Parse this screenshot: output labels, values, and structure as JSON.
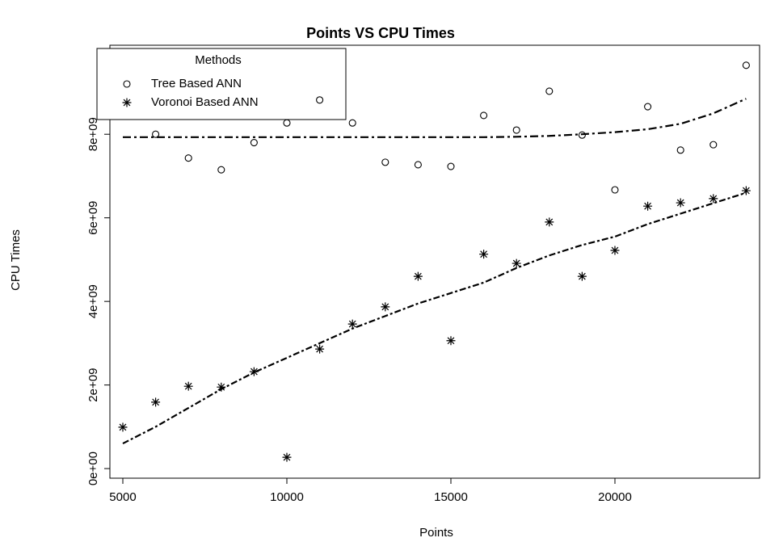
{
  "chart_data": {
    "type": "scatter",
    "title": "Points VS CPU Times",
    "x_label": "Points",
    "y_label": "CPU Times",
    "legend_title": "Methods",
    "legend": "top-left",
    "x": [
      5000,
      6000,
      7000,
      8000,
      9000,
      10000,
      11000,
      12000,
      13000,
      14000,
      15000,
      16000,
      17000,
      18000,
      19000,
      20000,
      21000,
      22000,
      23000,
      24000
    ],
    "series": [
      {
        "name": "Tree Based ANN",
        "marker": "circle",
        "color": "#000000",
        "values": [
          null,
          8000000000.0,
          7430000000.0,
          7150000000.0,
          7800000000.0,
          8270000000.0,
          8820000000.0,
          8270000000.0,
          7330000000.0,
          7270000000.0,
          7230000000.0,
          8450000000.0,
          8100000000.0,
          9030000000.0,
          7980000000.0,
          6670000000.0,
          8660000000.0,
          7620000000.0,
          7750000000.0,
          9650000000.0
        ],
        "fit": [
          7930000000.0,
          7930000000.0,
          7930000000.0,
          7930000000.0,
          7930000000.0,
          7930000000.0,
          7930000000.0,
          7930000000.0,
          7930000000.0,
          7930000000.0,
          7930000000.0,
          7930000000.0,
          7940000000.0,
          7960000000.0,
          8000000000.0,
          8050000000.0,
          8120000000.0,
          8250000000.0,
          8500000000.0,
          8850000000.0
        ]
      },
      {
        "name": "Voronoi Based ANN",
        "marker": "asterisk",
        "color": "#000000",
        "values": [
          990000000.0,
          1590000000.0,
          1970000000.0,
          1950000000.0,
          2320000000.0,
          270000000.0,
          2860000000.0,
          3460000000.0,
          3870000000.0,
          4600000000.0,
          3060000000.0,
          5130000000.0,
          4910000000.0,
          5900000000.0,
          4600000000.0,
          5220000000.0,
          6280000000.0,
          6360000000.0,
          6460000000.0,
          6650000000.0
        ],
        "fit": [
          600000000.0,
          1000000000.0,
          1450000000.0,
          1900000000.0,
          2300000000.0,
          2650000000.0,
          3000000000.0,
          3350000000.0,
          3650000000.0,
          3950000000.0,
          4200000000.0,
          4450000000.0,
          4800000000.0,
          5100000000.0,
          5350000000.0,
          5550000000.0,
          5850000000.0,
          6100000000.0,
          6350000000.0,
          6600000000.0
        ]
      }
    ],
    "xlim": [
      4606,
      24409
    ],
    "xticks": [
      5000,
      10000,
      15000,
      20000
    ],
    "ylim": [
      -230000000.0,
      10130000000.0
    ],
    "yticks": [
      {
        "value": 0,
        "label": "0e+00"
      },
      {
        "value": 2000000000,
        "label": "2e+09"
      },
      {
        "value": 4000000000,
        "label": "4e+09"
      },
      {
        "value": 6000000000,
        "label": "6e+09"
      },
      {
        "value": 8000000000,
        "label": "8e+09"
      }
    ]
  }
}
